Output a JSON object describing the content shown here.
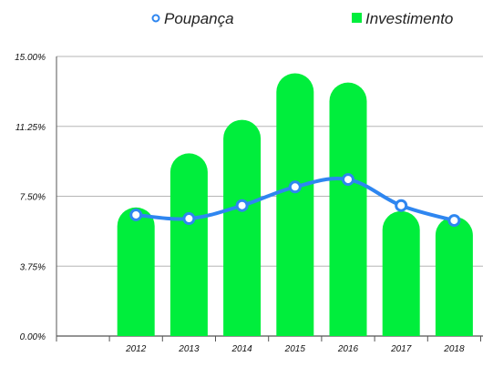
{
  "chart_data": {
    "type": "bar",
    "categories": [
      "2012",
      "2013",
      "2014",
      "2015",
      "2016",
      "2017",
      "2018"
    ],
    "series": [
      {
        "name": "Investimento",
        "type": "bar",
        "color": "#00ee3c",
        "values": [
          6.9,
          9.8,
          11.6,
          14.1,
          13.6,
          6.7,
          6.4
        ]
      },
      {
        "name": "Poupança",
        "type": "line",
        "color": "#2e86f0",
        "values": [
          6.5,
          6.3,
          7.0,
          8.0,
          8.4,
          7.0,
          6.2
        ]
      }
    ],
    "ylim": [
      0,
      15
    ],
    "yticks": [
      "0.00%",
      "3.75%",
      "7.50%",
      "11.25%",
      "15.00%"
    ],
    "grid": true,
    "legend_position": "top"
  }
}
